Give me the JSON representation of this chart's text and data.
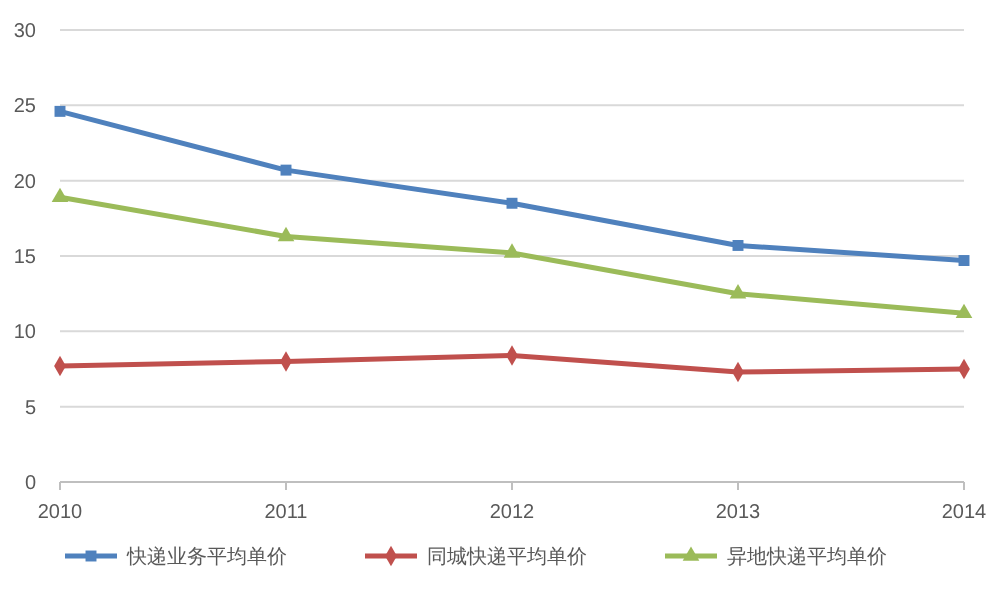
{
  "chart_data": {
    "type": "line",
    "x": [
      2010,
      2011,
      2012,
      2013,
      2014
    ],
    "xlim": [
      2010,
      2014
    ],
    "xticks": [
      2010,
      2011,
      2012,
      2013,
      2014
    ],
    "ylim": [
      0,
      30
    ],
    "yticks": [
      0,
      5,
      10,
      15,
      20,
      25,
      30
    ],
    "grid": "y",
    "legend": "bottom",
    "series": [
      {
        "name": "快递业务平均单价",
        "color": "#4f81bd",
        "marker": "square",
        "values": [
          24.6,
          20.7,
          18.5,
          15.7,
          14.7
        ]
      },
      {
        "name": "同城快递平均单价",
        "color": "#c0504d",
        "marker": "diamond",
        "values": [
          7.7,
          8.0,
          8.4,
          7.3,
          7.5
        ]
      },
      {
        "name": "异地快递平均单价",
        "color": "#9bbb59",
        "marker": "triangle",
        "values": [
          18.9,
          16.3,
          15.2,
          12.5,
          11.2
        ]
      }
    ]
  }
}
